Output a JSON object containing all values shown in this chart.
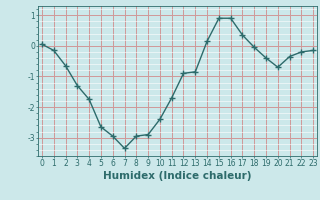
{
  "xlabel": "Humidex (Indice chaleur)",
  "x": [
    0,
    1,
    2,
    3,
    4,
    5,
    6,
    7,
    8,
    9,
    10,
    11,
    12,
    13,
    14,
    15,
    16,
    17,
    18,
    19,
    20,
    21,
    22,
    23
  ],
  "y": [
    0.05,
    -0.15,
    -0.65,
    -1.3,
    -1.75,
    -2.65,
    -2.95,
    -3.35,
    -2.95,
    -2.9,
    -2.4,
    -1.7,
    -0.9,
    -0.85,
    0.15,
    0.9,
    0.9,
    0.35,
    -0.05,
    -0.4,
    -0.7,
    -0.35,
    -0.2,
    -0.15
  ],
  "line_color": "#2d6b6b",
  "marker": "+",
  "marker_size": 4,
  "marker_linewidth": 1.0,
  "background_color": "#cce8ea",
  "grid_major_color": "#d09898",
  "grid_white_color": "#ffffff",
  "ylim": [
    -3.6,
    1.3
  ],
  "xlim": [
    -0.3,
    23.3
  ],
  "yticks": [
    -3,
    -2,
    -1,
    0,
    1
  ],
  "xticks": [
    0,
    1,
    2,
    3,
    4,
    5,
    6,
    7,
    8,
    9,
    10,
    11,
    12,
    13,
    14,
    15,
    16,
    17,
    18,
    19,
    20,
    21,
    22,
    23
  ],
  "tick_label_fontsize": 5.5,
  "xlabel_fontsize": 7.5,
  "line_width": 1.0
}
